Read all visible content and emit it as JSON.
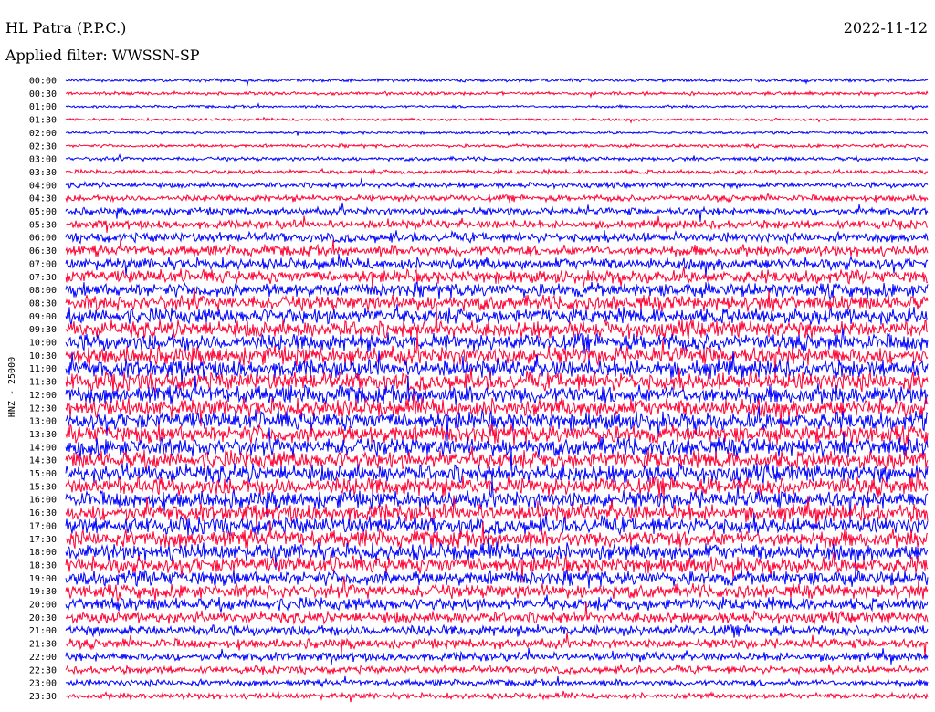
{
  "header": {
    "station": "HL Patra (P.P.C.)",
    "date": "2022-11-12",
    "filter": "Applied filter: WWSSN-SP"
  },
  "colors": {
    "trace_a": "#0000ff",
    "trace_b": "#ff0033",
    "background": "#ffffff",
    "text": "#000000"
  },
  "chart_data": {
    "type": "line",
    "title": "HL Patra (P.P.C.)",
    "subtitle": "Applied filter: WWSSN-SP",
    "ylabel": "HNZ - 25000",
    "xlabel": "",
    "date": "2022-11-12",
    "rows": [
      "00:00",
      "00:30",
      "01:00",
      "01:30",
      "02:00",
      "02:30",
      "03:00",
      "03:30",
      "04:00",
      "04:30",
      "05:00",
      "05:30",
      "06:00",
      "06:30",
      "07:00",
      "07:30",
      "08:00",
      "08:30",
      "09:00",
      "09:30",
      "10:00",
      "10:30",
      "11:00",
      "11:30",
      "12:00",
      "12:30",
      "13:00",
      "13:30",
      "14:00",
      "14:30",
      "15:00",
      "15:30",
      "16:00",
      "16:30",
      "17:00",
      "17:30",
      "18:00",
      "18:30",
      "19:00",
      "19:30",
      "20:00",
      "20:30",
      "21:00",
      "21:30",
      "22:00",
      "22:30",
      "23:00",
      "23:30"
    ],
    "row_colors": [
      "blue",
      "red"
    ],
    "relative_noise_amplitude": [
      0.15,
      0.15,
      0.12,
      0.12,
      0.12,
      0.15,
      0.18,
      0.2,
      0.25,
      0.3,
      0.35,
      0.4,
      0.45,
      0.5,
      0.55,
      0.6,
      0.65,
      0.7,
      0.75,
      0.8,
      0.8,
      0.85,
      0.85,
      0.85,
      0.85,
      0.85,
      0.85,
      0.85,
      0.85,
      0.85,
      0.85,
      0.85,
      0.8,
      0.8,
      0.8,
      0.8,
      0.8,
      0.75,
      0.7,
      0.65,
      0.6,
      0.55,
      0.5,
      0.45,
      0.4,
      0.35,
      0.3,
      0.28
    ],
    "grid": false,
    "legend": "none"
  }
}
